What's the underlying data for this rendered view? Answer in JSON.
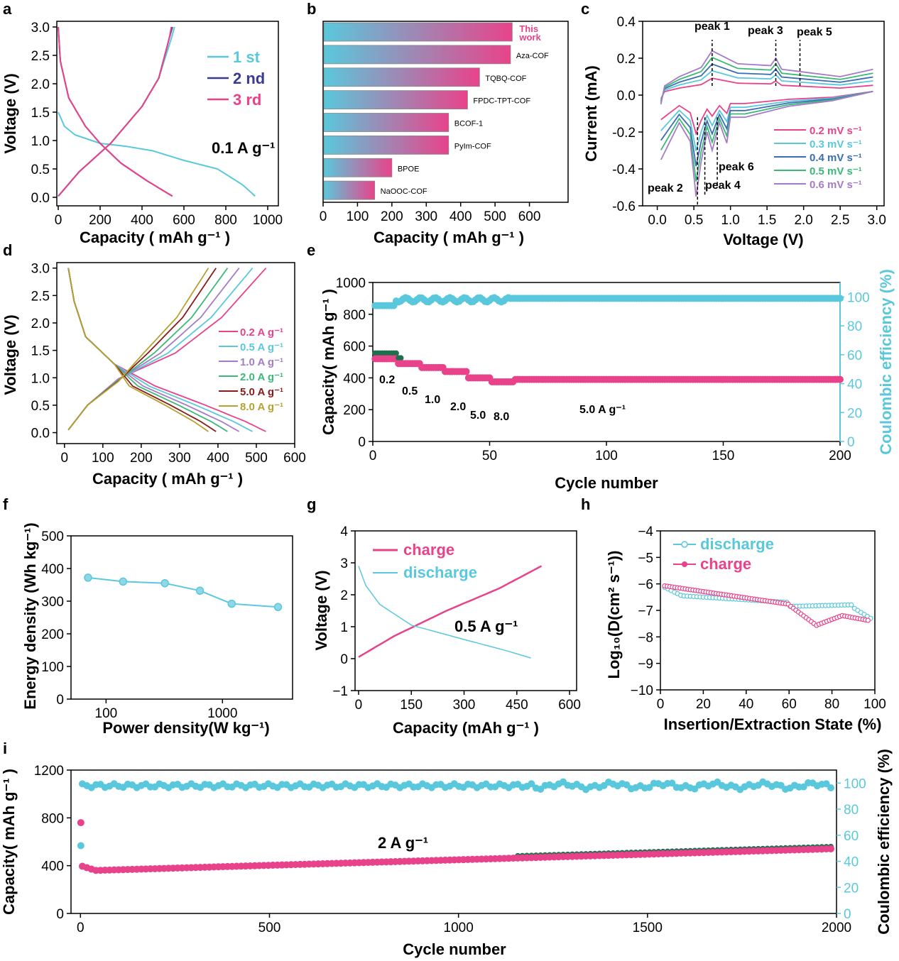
{
  "panel_letters": [
    "a",
    "b",
    "c",
    "d",
    "e",
    "f",
    "g",
    "h",
    "i"
  ],
  "colors": {
    "cyan": "#5ac8dc",
    "navy": "#3b3a8f",
    "pink": "#e8438a",
    "blue": "#3a6db4",
    "green": "#3cb878",
    "purple": "#a57bc8",
    "darkred": "#8b1a1a",
    "olive": "#b5a232",
    "darkgreen": "#1f6f4e"
  },
  "chart_data": [
    {
      "id": "a",
      "type": "line",
      "xlabel": "Capacity ( mAh g⁻¹ )",
      "ylabel": "Voltage (V)",
      "xlim": [
        0,
        1000
      ],
      "ylim": [
        0,
        3.0
      ],
      "xticks": [
        "0",
        "200",
        "400",
        "600",
        "800",
        "1000"
      ],
      "yticks": [
        "0.0",
        "0.5",
        "1.0",
        "1.5",
        "2.0",
        "2.5",
        "3.0"
      ],
      "legend": [
        "1 st",
        "2 nd",
        "3 rd"
      ],
      "annotation": "0.1 A g⁻¹",
      "series": [
        {
          "name": "1 st",
          "color": "cyan",
          "discharge": [
            [
              0,
              1.5
            ],
            [
              30,
              1.25
            ],
            [
              80,
              1.1
            ],
            [
              200,
              0.95
            ],
            [
              320,
              0.9
            ],
            [
              450,
              0.82
            ],
            [
              600,
              0.65
            ],
            [
              760,
              0.5
            ],
            [
              880,
              0.22
            ],
            [
              940,
              0.02
            ]
          ],
          "charge": [
            [
              0,
              0.02
            ],
            [
              100,
              0.45
            ],
            [
              250,
              0.95
            ],
            [
              400,
              1.6
            ],
            [
              480,
              2.1
            ],
            [
              540,
              2.8
            ],
            [
              555,
              3.0
            ]
          ]
        },
        {
          "name": "2 nd",
          "color": "navy",
          "discharge": [
            [
              0,
              3.0
            ],
            [
              10,
              2.4
            ],
            [
              50,
              1.75
            ],
            [
              130,
              1.25
            ],
            [
              200,
              0.95
            ],
            [
              300,
              0.6
            ],
            [
              420,
              0.3
            ],
            [
              500,
              0.12
            ],
            [
              545,
              0.02
            ]
          ],
          "charge": [
            [
              0,
              0.02
            ],
            [
              100,
              0.45
            ],
            [
              250,
              0.95
            ],
            [
              400,
              1.6
            ],
            [
              480,
              2.1
            ],
            [
              530,
              2.8
            ],
            [
              545,
              3.0
            ]
          ]
        },
        {
          "name": "3 rd",
          "color": "pink",
          "discharge": [
            [
              0,
              3.0
            ],
            [
              10,
              2.4
            ],
            [
              50,
              1.75
            ],
            [
              130,
              1.25
            ],
            [
              200,
              0.95
            ],
            [
              300,
              0.6
            ],
            [
              420,
              0.3
            ],
            [
              500,
              0.12
            ],
            [
              545,
              0.02
            ]
          ],
          "charge": [
            [
              0,
              0.02
            ],
            [
              100,
              0.45
            ],
            [
              250,
              0.95
            ],
            [
              400,
              1.6
            ],
            [
              480,
              2.1
            ],
            [
              530,
              2.8
            ],
            [
              540,
              3.0
            ]
          ]
        }
      ]
    },
    {
      "id": "b",
      "type": "bar",
      "xlabel": "Capacity ( mAh g⁻¹ )",
      "xlim": [
        0,
        700
      ],
      "xticks": [
        "0",
        "100",
        "200",
        "300",
        "400",
        "500",
        "600"
      ],
      "categories": [
        "This work",
        "Aza-COF",
        "TQBQ-COF",
        "FPDC-TPT-COF",
        "BCOF-1",
        "PyIm-COF",
        "BPOE",
        "NaOOC-COF"
      ],
      "values": [
        550,
        545,
        455,
        420,
        365,
        365,
        200,
        150
      ]
    },
    {
      "id": "c",
      "type": "line",
      "xlabel": "Voltage (V)",
      "ylabel": "Current (mA)",
      "xlim": [
        -0.2,
        3.0
      ],
      "ylim": [
        -0.6,
        0.4
      ],
      "xticks": [
        "0.0",
        "0.5",
        "1.0",
        "1.5",
        "2.0",
        "2.5",
        "3.0"
      ],
      "yticks": [
        "-0.6",
        "-0.4",
        "-0.2",
        "0.0",
        "0.2",
        "0.4"
      ],
      "legend": [
        "0.2 mV s⁻¹",
        "0.3 mV s⁻¹",
        "0.4 mV s⁻¹",
        "0.5 mV s⁻¹",
        "0.6 mV s⁻¹"
      ],
      "peaks": [
        "peak 1",
        "peak 2",
        "peak 3",
        "peak 4",
        "peak 5",
        "peak 6"
      ],
      "scale": [
        0.38,
        0.55,
        0.7,
        0.85,
        1.0
      ]
    },
    {
      "id": "d",
      "type": "line",
      "xlabel": "Capacity ( mAh g⁻¹ )",
      "ylabel": "Voltage (V)",
      "xlim": [
        -20,
        600
      ],
      "ylim": [
        -0.2,
        3.1
      ],
      "xticks": [
        "0",
        "100",
        "200",
        "300",
        "400",
        "500",
        "600"
      ],
      "yticks": [
        "0.0",
        "0.5",
        "1.0",
        "1.5",
        "2.0",
        "2.5",
        "3.0"
      ],
      "legend": [
        "0.2 A g⁻¹",
        "0.5 A g⁻¹",
        "1.0 A g⁻¹",
        "2.0 A g⁻¹",
        "5.0 A g⁻¹",
        "8.0 A g⁻¹"
      ],
      "capacities": [
        525,
        490,
        455,
        425,
        395,
        375
      ]
    },
    {
      "id": "e",
      "type": "scatter",
      "xlabel": "Cycle number",
      "ylabel": "Capacity( mAh g⁻¹ )",
      "y2label": "Coulombic efficiency (%)",
      "xlim": [
        0,
        200
      ],
      "ylim": [
        0,
        1000
      ],
      "y2lim": [
        0,
        110
      ],
      "xticks": [
        "0",
        "50",
        "100",
        "150",
        "200"
      ],
      "yticks": [
        "0",
        "200",
        "400",
        "600",
        "800",
        "1000"
      ],
      "y2ticks": [
        "0",
        "20",
        "40",
        "60",
        "80",
        "100"
      ],
      "rate_labels": [
        "0.2",
        "0.5",
        "1.0",
        "2.0",
        "5.0",
        "8.0",
        "5.0 A g⁻¹"
      ]
    },
    {
      "id": "f",
      "type": "line",
      "xlabel": "Power density(W kg⁻¹)",
      "ylabel": "Energy density (Wh kg⁻¹)",
      "xscale": "log",
      "xlim": [
        50,
        4000
      ],
      "ylim": [
        0,
        500
      ],
      "xticks": [
        "100",
        "1000"
      ],
      "yticks": [
        "0",
        "100",
        "200",
        "300",
        "400",
        "500"
      ],
      "x": [
        70,
        140,
        320,
        640,
        1200,
        3000
      ],
      "y": [
        372,
        360,
        355,
        332,
        292,
        282
      ]
    },
    {
      "id": "g",
      "type": "line",
      "xlabel": "Capacity (mAh g⁻¹ )",
      "ylabel": "Voltage (V)",
      "xlim": [
        -10,
        620
      ],
      "ylim": [
        -1,
        4
      ],
      "xticks": [
        "0",
        "150",
        "300",
        "450",
        "600"
      ],
      "yticks": [
        "−1",
        "0",
        "1",
        "2",
        "3",
        "4"
      ],
      "legend": [
        "charge",
        "discharge"
      ],
      "annotation": "0.5 A g⁻¹"
    },
    {
      "id": "h",
      "type": "scatter",
      "xlabel": "Insertion/Extraction State (%)",
      "ylabel": "Log₁₀(D(cm² s⁻¹))",
      "xlim": [
        0,
        100
      ],
      "ylim": [
        -10,
        -4
      ],
      "xticks": [
        "0",
        "20",
        "40",
        "60",
        "80",
        "100"
      ],
      "yticks": [
        "−10",
        "−9",
        "−8",
        "−7",
        "−6",
        "−5",
        "−4"
      ],
      "legend": [
        "discharge",
        "charge"
      ]
    },
    {
      "id": "i",
      "type": "scatter",
      "xlabel": "Cycle number",
      "ylabel": "Capacity( mAh g⁻¹ )",
      "y2label": "Coulombic efficiency (%)",
      "xlim": [
        0,
        2000
      ],
      "ylim": [
        0,
        1200
      ],
      "y2lim": [
        0,
        110
      ],
      "xticks": [
        "0",
        "500",
        "1000",
        "1500",
        "2000"
      ],
      "yticks": [
        "0",
        "400",
        "800",
        "1200"
      ],
      "y2ticks": [
        "0",
        "20",
        "40",
        "60",
        "80",
        "100"
      ],
      "annotation": "2 A g⁻¹"
    }
  ]
}
